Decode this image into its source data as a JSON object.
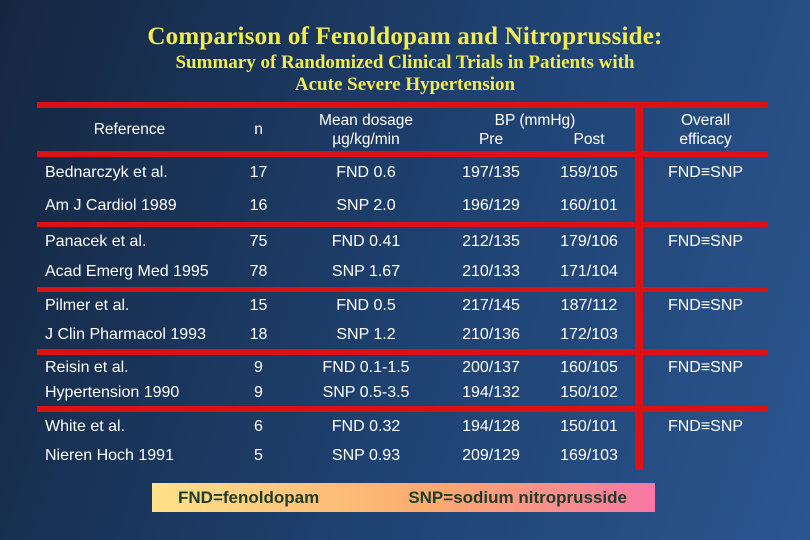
{
  "slide": {
    "title": "Comparison of Fenoldopam and Nitroprusside:",
    "subtitle_line1": "Summary of Randomized Clinical Trials in Patients with",
    "subtitle_line2": "Acute Severe Hypertension"
  },
  "table": {
    "headers": {
      "reference": "Reference",
      "n": "n",
      "dosage_line1": "Mean dosage",
      "dosage_line2": "µg/kg/min",
      "bp": "BP (mmHg)",
      "pre": "Pre",
      "post": "Post",
      "efficacy_line1": "Overall",
      "efficacy_line2": "efficacy"
    },
    "rows": [
      {
        "ref_line1": "Bednarczyk et al.",
        "ref_line2": "Am J Cardiol 1989",
        "n1": "17",
        "n2": "16",
        "dose1": "FND 0.6",
        "dose2": "SNP 2.0",
        "pre1": "197/135",
        "post1": "159/105",
        "pre2": "196/129",
        "post2": "160/101",
        "efficacy": "FND≡SNP"
      },
      {
        "ref_line1": "Panacek et al.",
        "ref_line2": "Acad Emerg Med 1995",
        "n1": "75",
        "n2": "78",
        "dose1": "FND 0.41",
        "dose2": "SNP 1.67",
        "pre1": "212/135",
        "post1": "179/106",
        "pre2": "210/133",
        "post2": "171/104",
        "efficacy": "FND≡SNP"
      },
      {
        "ref_line1": "Pilmer et al.",
        "ref_line2": "J Clin Pharmacol 1993",
        "n1": "15",
        "n2": "18",
        "dose1": "FND 0.5",
        "dose2": "SNP 1.2",
        "pre1": "217/145",
        "post1": "187/112",
        "pre2": "210/136",
        "post2": "172/103",
        "efficacy": "FND≡SNP"
      },
      {
        "ref_line1": "Reisin et al.",
        "ref_line2": "Hypertension 1990",
        "n1": "9",
        "n2": "9",
        "dose1": "FND 0.1-1.5",
        "dose2": "SNP 0.5-3.5",
        "pre1": "200/137",
        "post1": "160/105",
        "pre2": "194/132",
        "post2": "150/102",
        "efficacy": "FND≡SNP"
      },
      {
        "ref_line1": "White et al.",
        "ref_line2": "Nieren Hoch 1991",
        "n1": "6",
        "n2": "5",
        "dose1": "FND 0.32",
        "dose2": "SNP 0.93",
        "pre1": "194/128",
        "post1": "150/101",
        "pre2": "209/129",
        "post2": "169/103",
        "efficacy": "FND≡SNP"
      }
    ]
  },
  "footer": {
    "fnd_legend": "FND=fenoldopam",
    "snp_legend": "SNP=sodium nitroprusside"
  },
  "colors": {
    "accent_red": "#db1116",
    "title_yellow": "#f1ed4f",
    "table_text": "#ffffff",
    "background_dark": "#152640",
    "background_light": "#2b5690",
    "legend_bar_left": "#ffe28a",
    "legend_bar_right": "#f877a4",
    "legend_text": "#1e3d2a"
  }
}
